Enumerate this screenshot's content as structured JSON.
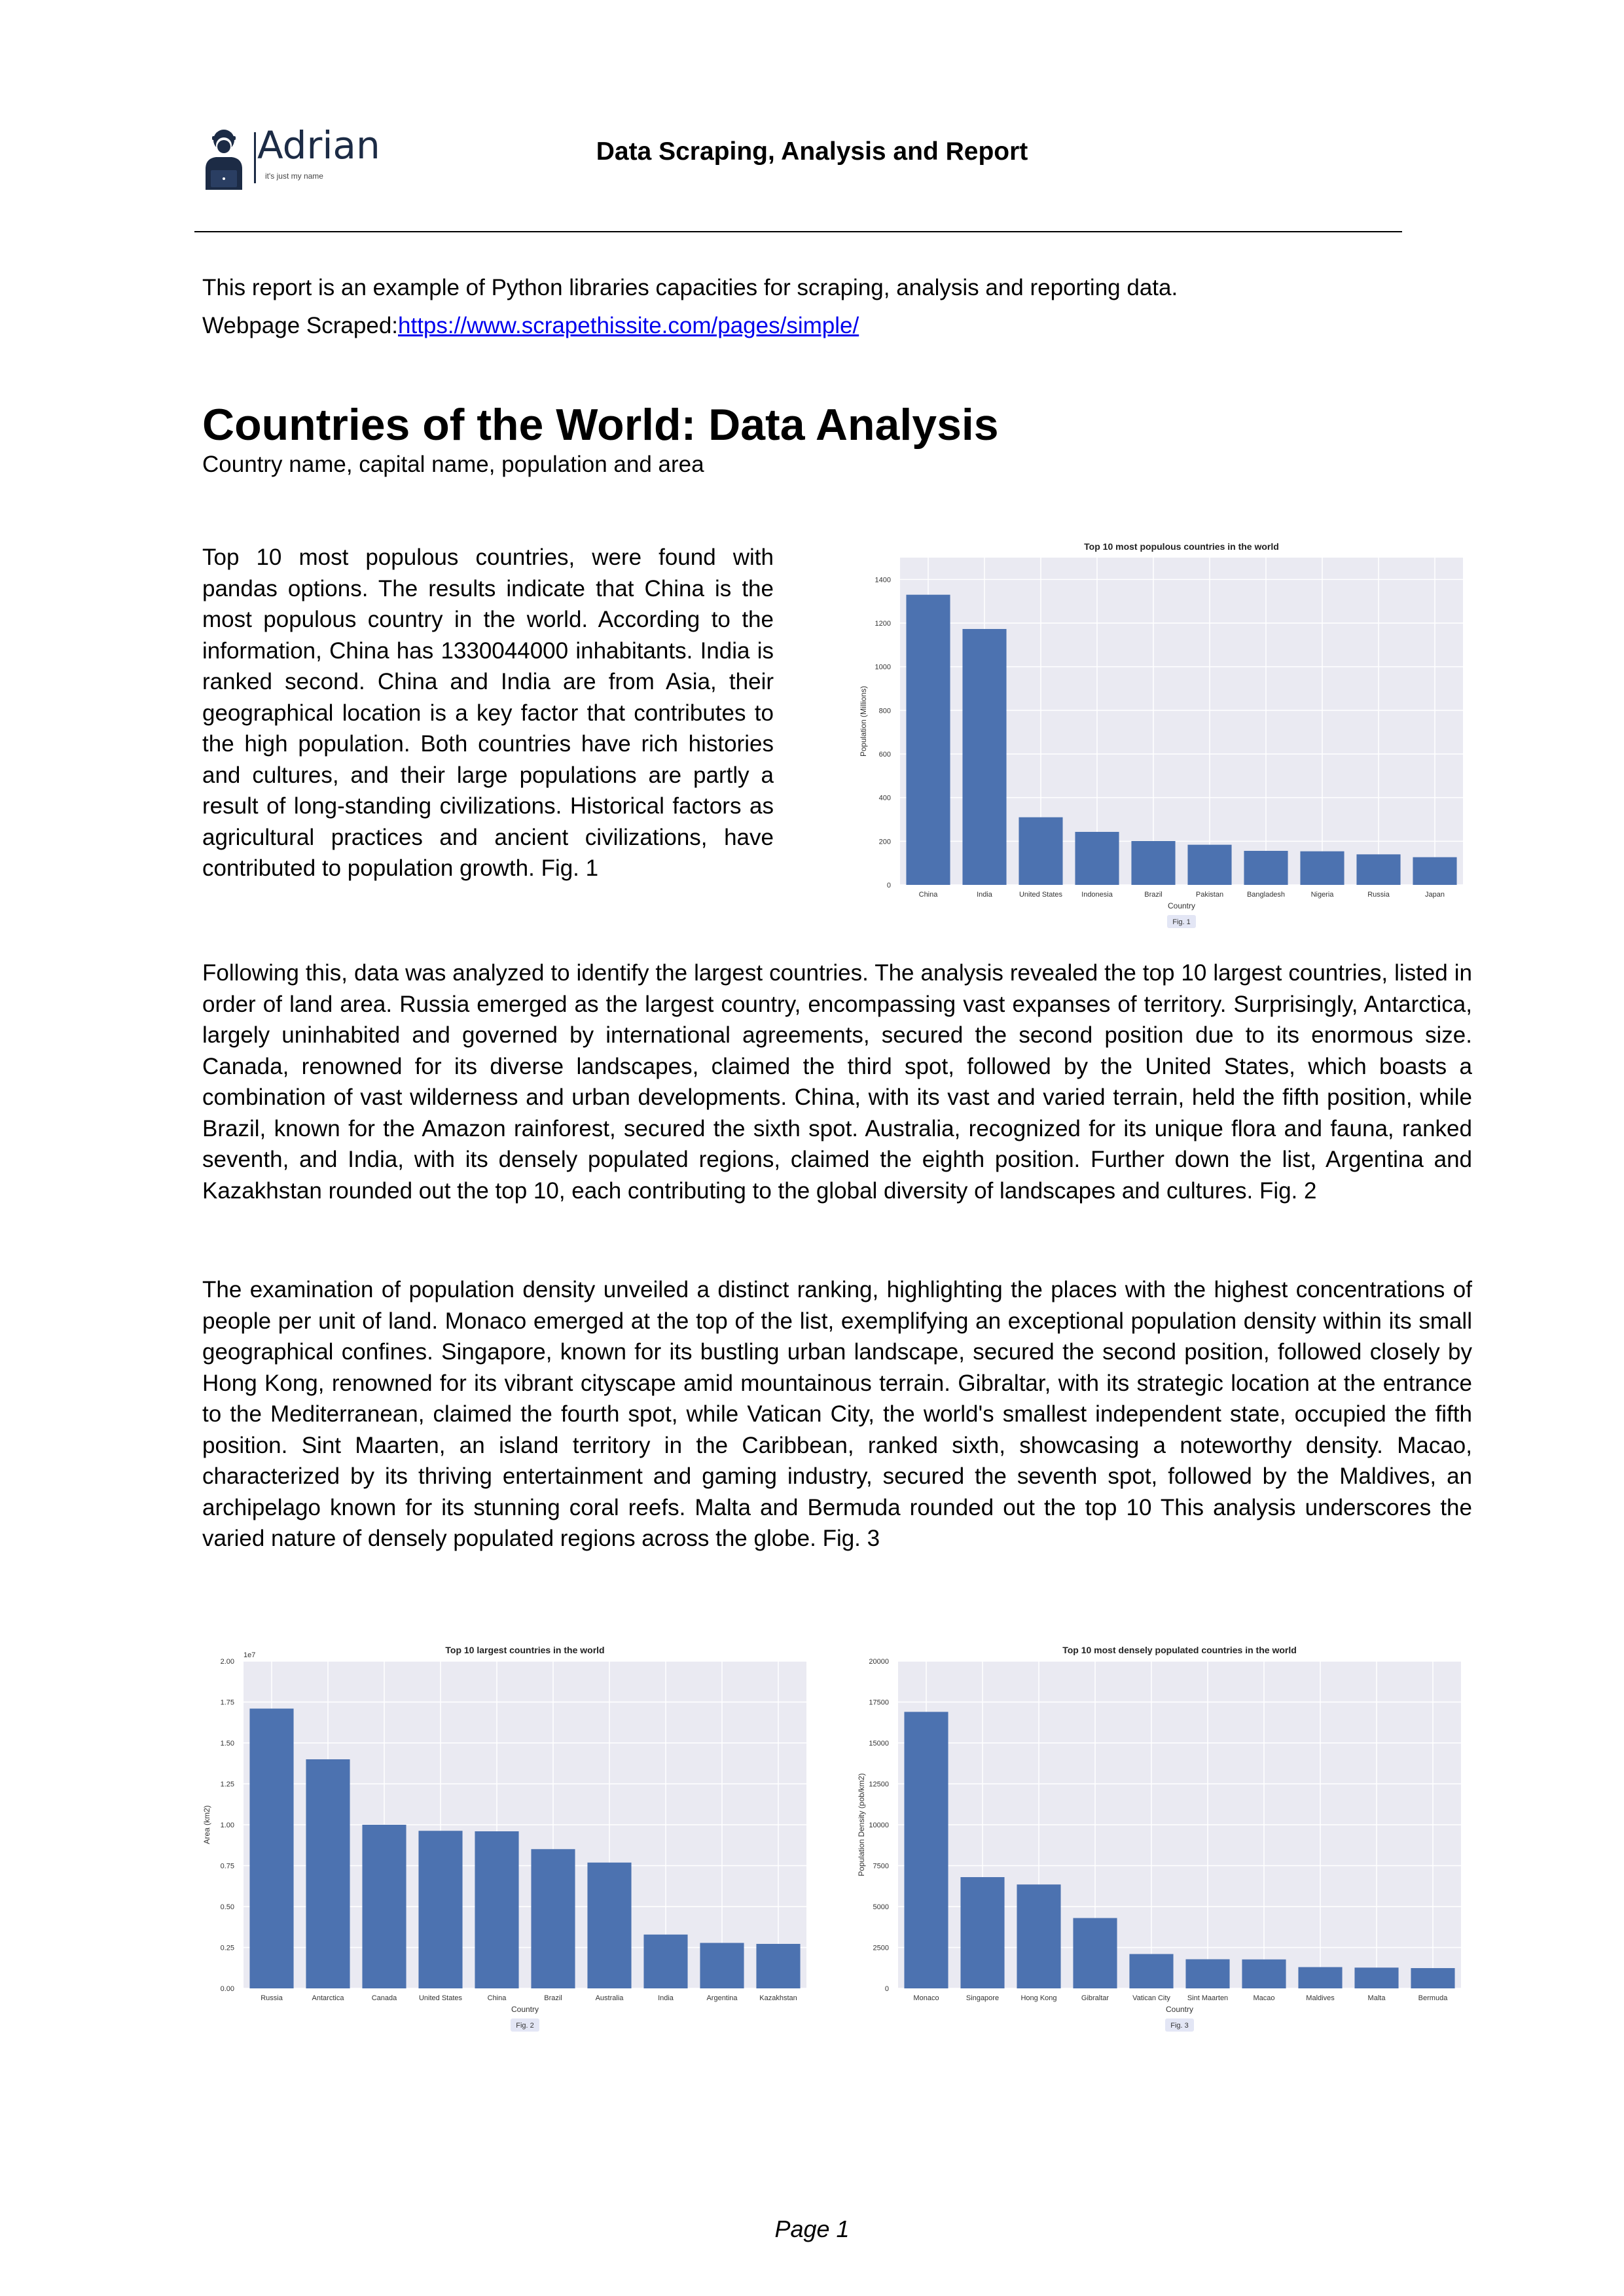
{
  "header": {
    "logo_name": "Adrian",
    "logo_tagline": "it's just my name",
    "title": "Data Scraping, Analysis and Report"
  },
  "intro": {
    "line1": "This report is an example of Python libraries capacities for scraping, analysis and reporting data.",
    "line2_prefix": "Webpage Scraped:",
    "link_text": "https://www.scrapethissite.com/pages/simple/"
  },
  "section": {
    "title": "Countries of the World: Data Analysis",
    "subtitle": "Country name, capital name, population and area"
  },
  "paragraphs": {
    "p1": "Top 10 most populous countries, were found with pandas options. The results indicate that China is the most populous country in the world. According to the information, China has 1330044000 inhabitants. India is ranked second. China and India are from Asia, their geographical location is a key factor that contributes to the high population. Both countries have rich histories and cultures, and their large populations are partly a result of long-standing civilizations. Historical factors as agricultural practices and ancient civilizations, have contributed to population growth. Fig. 1",
    "p2": "Following this, data was analyzed to identify the largest countries. The analysis revealed the top 10 largest countries, listed in order of land area. Russia emerged as the largest country, encompassing vast expanses of territory. Surprisingly, Antarctica, largely uninhabited and governed by international agreements, secured the second position due to its enormous size. Canada, renowned for its diverse landscapes, claimed the third spot, followed by the United States, which boasts a combination of vast wilderness and urban developments. China, with its vast and varied terrain, held the fifth position, while Brazil, known for the Amazon rainforest, secured the sixth spot. Australia, recognized for its unique flora and fauna, ranked seventh, and India, with its densely populated regions, claimed the eighth position. Further down the list, Argentina and Kazakhstan rounded out the top 10, each contributing to the global diversity of landscapes and cultures. Fig. 2",
    "p3": "The examination of population density unveiled a distinct ranking, highlighting the places with the highest concentrations of people per unit of land. Monaco emerged at the top of the list, exemplifying an exceptional population density within its small geographical confines. Singapore, known for its bustling urban landscape, secured the second position, followed closely by Hong Kong, renowned for its vibrant cityscape amid mountainous terrain. Gibraltar, with its strategic location at the entrance to the Mediterranean, claimed the fourth spot, while Vatican City, the world's smallest independent state, occupied the fifth position. Sint Maarten, an island territory in the Caribbean, ranked sixth, showcasing a noteworthy density. Macao, characterized by its thriving entertainment and gaming industry, secured the seventh spot, followed by the Maldives, an archipelago known for its stunning coral reefs. Malta and Bermuda rounded out the top 10 This analysis underscores the varied nature of densely populated regions across the globe. Fig. 3"
  },
  "footer": {
    "page": "Page 1"
  },
  "colors": {
    "bar": "#4c72b0",
    "plot_bg": "#eaeaf2",
    "grid": "#ffffff",
    "link": "#0000ee",
    "caption_bg": "#e3e6f5"
  },
  "chart_data": [
    {
      "id": "fig1",
      "type": "bar",
      "title": "Top 10 most populous countries in the world",
      "xlabel": "Country",
      "ylabel": "Population (Millions)",
      "caption": "Fig. 1",
      "categories": [
        "China",
        "India",
        "United States",
        "Indonesia",
        "Brazil",
        "Pakistan",
        "Bangladesh",
        "Nigeria",
        "Russia",
        "Japan"
      ],
      "values": [
        1330,
        1173,
        310,
        243,
        201,
        184,
        156,
        154,
        140,
        127
      ],
      "ylim": [
        0,
        1500
      ],
      "yticks": [
        0,
        200,
        400,
        600,
        800,
        1000,
        1200,
        1400
      ],
      "ytick_labels": [
        "0",
        "200",
        "400",
        "600",
        "800",
        "1000",
        "1200",
        "1400"
      ],
      "grid": true
    },
    {
      "id": "fig2",
      "type": "bar",
      "title": "Top 10 largest countries in the world",
      "xlabel": "Country",
      "ylabel": "Area (km2)",
      "offset_label": "1e7",
      "caption": "Fig. 2",
      "categories": [
        "Russia",
        "Antarctica",
        "Canada",
        "United States",
        "China",
        "Brazil",
        "Australia",
        "India",
        "Argentina",
        "Kazakhstan"
      ],
      "values": [
        1.71,
        1.4,
        1.0,
        0.963,
        0.96,
        0.851,
        0.769,
        0.329,
        0.278,
        0.272
      ],
      "ylim": [
        0,
        2.0
      ],
      "yticks": [
        0,
        0.25,
        0.5,
        0.75,
        1.0,
        1.25,
        1.5,
        1.75,
        2.0
      ],
      "ytick_labels": [
        "0.00",
        "0.25",
        "0.50",
        "0.75",
        "1.00",
        "1.25",
        "1.50",
        "1.75",
        "2.00"
      ],
      "grid": true
    },
    {
      "id": "fig3",
      "type": "bar",
      "title": "Top 10 most densely populated countries in the world",
      "xlabel": "Country",
      "ylabel": "Population Density (pob/km2)",
      "caption": "Fig. 3",
      "categories": [
        "Monaco",
        "Singapore",
        "Hong Kong",
        "Gibraltar",
        "Vatican City",
        "Sint Maarten",
        "Macao",
        "Maldives",
        "Malta",
        "Bermuda"
      ],
      "values": [
        16900,
        6800,
        6350,
        4300,
        2100,
        1780,
        1770,
        1300,
        1270,
        1240
      ],
      "ylim": [
        0,
        20000
      ],
      "yticks": [
        0,
        2500,
        5000,
        7500,
        10000,
        12500,
        15000,
        17500,
        20000
      ],
      "ytick_labels": [
        "0",
        "2500",
        "5000",
        "7500",
        "10000",
        "12500",
        "15000",
        "17500",
        "20000"
      ],
      "grid": true
    }
  ]
}
